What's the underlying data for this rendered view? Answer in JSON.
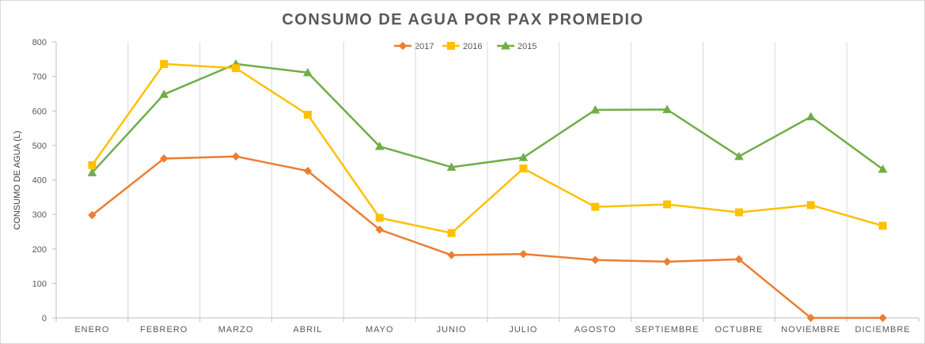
{
  "chart_data": {
    "type": "line",
    "title": "CONSUMO  DE AGUA POR PAX PROMEDIO",
    "ylabel": "CONSUMO DE AGUA (L)",
    "xlabel": "",
    "ylim": [
      0,
      800
    ],
    "yticks": [
      0,
      100,
      200,
      300,
      400,
      500,
      600,
      700,
      800
    ],
    "grid": "vertical category lines",
    "legend_position": "top-center",
    "categories": [
      "ENERO",
      "FEBRERO",
      "MARZO",
      "ABRIL",
      "MAYO",
      "JUNIO",
      "JULIO",
      "AGOSTO",
      "SEPTIEMBRE",
      "OCTUBRE",
      "NOVIEMBRE",
      "DICIEMBRE"
    ],
    "series": [
      {
        "name": "2017",
        "color": "#ED7D31",
        "marker": "diamond",
        "values": [
          298,
          462,
          468,
          426,
          256,
          182,
          185,
          168,
          163,
          170,
          0,
          0
        ]
      },
      {
        "name": "2016",
        "color": "#FFC000",
        "marker": "square",
        "values": [
          443,
          736,
          724,
          589,
          290,
          246,
          433,
          322,
          329,
          306,
          327,
          267
        ]
      },
      {
        "name": "2015",
        "color": "#70AD47",
        "marker": "triangle",
        "values": [
          421,
          648,
          736,
          711,
          497,
          437,
          465,
          603,
          604,
          468,
          583,
          431
        ]
      }
    ]
  }
}
